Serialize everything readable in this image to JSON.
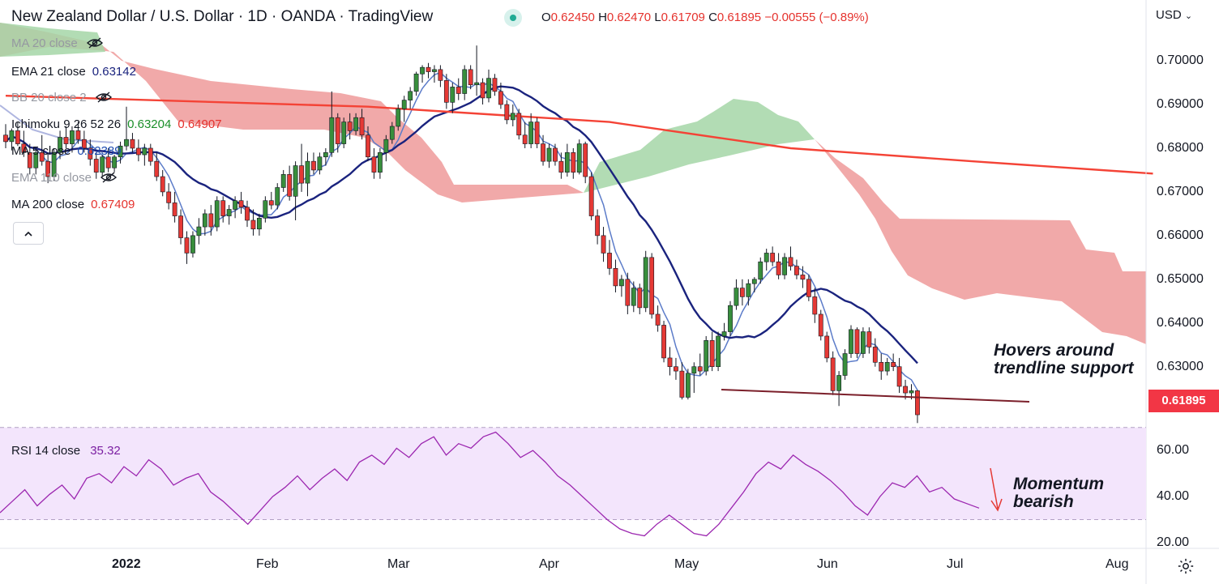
{
  "header": {
    "title": "New Zealand Dollar / U.S. Dollar · 1D · OANDA · TradingView",
    "ohlc": [
      {
        "key": "O",
        "value": "0.62450"
      },
      {
        "key": "H",
        "value": "0.62470"
      },
      {
        "key": "L",
        "value": "0.61709"
      },
      {
        "key": "C",
        "value": "0.61895"
      },
      {
        "key": "",
        "value": "−0.00555 (−0.89%)"
      }
    ]
  },
  "currency": "USD",
  "current_price": "0.61895",
  "legend": [
    {
      "label": "MA 20 close",
      "value": "",
      "hidden": true,
      "color": "#9598a1",
      "value_color": ""
    },
    {
      "label": "EMA 21 close",
      "value": "0.63142",
      "hidden": false,
      "color": "#131722",
      "value_color": "#1a237e"
    },
    {
      "label": "BB 20 close 2",
      "value": "",
      "hidden": true,
      "color": "#9598a1",
      "value_color": ""
    },
    {
      "label": "Ichimoku 9 26 52 26",
      "value": "0.63204",
      "value2": "0.64907",
      "hidden": false,
      "color": "#131722",
      "value_color": "#1b8f2a",
      "value2_color": "#e5322d"
    },
    {
      "label": "MA 5 close",
      "value": "0.62389",
      "hidden": false,
      "color": "#131722",
      "value_color": "#1e4bb0"
    },
    {
      "label": "EMA 110 close",
      "value": "",
      "hidden": true,
      "color": "#9598a1",
      "value_color": ""
    },
    {
      "label": "MA 200 close",
      "value": "0.67409",
      "hidden": false,
      "color": "#131722",
      "value_color": "#e5322d"
    }
  ],
  "rsi_legend": {
    "label": "RSI 14 close",
    "value": "35.32"
  },
  "annotations": {
    "trendline": [
      "Hovers around",
      "trendline support"
    ],
    "momentum": [
      "Momentum",
      "bearish"
    ]
  },
  "chart_data": {
    "type": "candlestick",
    "symbol": "NZDUSD",
    "timeframe": "1D",
    "price_axis": {
      "ticks": [
        "0.70000",
        "0.69000",
        "0.68000",
        "0.67000",
        "0.66000",
        "0.65000",
        "0.64000",
        "0.63000"
      ],
      "range": [
        0.6166,
        0.7065
      ]
    },
    "x_axis": {
      "ticks": [
        {
          "label": "2022",
          "bold": true
        },
        {
          "label": "Feb",
          "bold": false
        },
        {
          "label": "Mar",
          "bold": false
        },
        {
          "label": "Apr",
          "bold": false
        },
        {
          "label": "May",
          "bold": false
        },
        {
          "label": "Jun",
          "bold": false
        },
        {
          "label": "Jul",
          "bold": false
        },
        {
          "label": "Aug",
          "bold": false
        }
      ]
    },
    "colors": {
      "up": "#388e3c",
      "down": "#e53935",
      "ema21": "#1a237e",
      "ma5": "#5c7cc9",
      "ma200": "#f44336",
      "ema110": "#7986cb",
      "cloud_bull": "#a5d6a7",
      "cloud_bear": "#ef9a9a",
      "rsi": "#9c27b0",
      "rsi_band": "#f3e5fc"
    },
    "candles": [
      [
        0.683,
        0.6855,
        0.68,
        0.6815
      ],
      [
        0.6815,
        0.6845,
        0.6795,
        0.684
      ],
      [
        0.684,
        0.686,
        0.6805,
        0.681
      ],
      [
        0.681,
        0.684,
        0.678,
        0.679
      ],
      [
        0.679,
        0.681,
        0.674,
        0.6755
      ],
      [
        0.6755,
        0.68,
        0.674,
        0.679
      ],
      [
        0.679,
        0.683,
        0.676,
        0.677
      ],
      [
        0.677,
        0.679,
        0.672,
        0.6735
      ],
      [
        0.6735,
        0.68,
        0.6725,
        0.679
      ],
      [
        0.679,
        0.684,
        0.6775,
        0.6825
      ],
      [
        0.6825,
        0.685,
        0.68,
        0.681
      ],
      [
        0.681,
        0.685,
        0.679,
        0.684
      ],
      [
        0.684,
        0.686,
        0.681,
        0.682
      ],
      [
        0.682,
        0.684,
        0.679,
        0.68
      ],
      [
        0.68,
        0.682,
        0.676,
        0.6775
      ],
      [
        0.6775,
        0.679,
        0.673,
        0.6745
      ],
      [
        0.6745,
        0.6785,
        0.6735,
        0.678
      ],
      [
        0.678,
        0.68,
        0.6745,
        0.6755
      ],
      [
        0.6755,
        0.6785,
        0.6745,
        0.678
      ],
      [
        0.678,
        0.6815,
        0.6765,
        0.6805
      ],
      [
        0.6805,
        0.6895,
        0.6795,
        0.682
      ],
      [
        0.682,
        0.6835,
        0.679,
        0.68
      ],
      [
        0.68,
        0.682,
        0.677,
        0.6785
      ],
      [
        0.6785,
        0.681,
        0.676,
        0.68
      ],
      [
        0.68,
        0.681,
        0.676,
        0.677
      ],
      [
        0.677,
        0.679,
        0.6725,
        0.6735
      ],
      [
        0.6735,
        0.675,
        0.669,
        0.67
      ],
      [
        0.67,
        0.672,
        0.666,
        0.6675
      ],
      [
        0.6675,
        0.67,
        0.663,
        0.6645
      ],
      [
        0.6645,
        0.666,
        0.658,
        0.6595
      ],
      [
        0.6595,
        0.661,
        0.6535,
        0.656
      ],
      [
        0.656,
        0.661,
        0.655,
        0.66
      ],
      [
        0.66,
        0.664,
        0.658,
        0.662
      ],
      [
        0.662,
        0.666,
        0.66,
        0.665
      ],
      [
        0.665,
        0.667,
        0.66,
        0.662
      ],
      [
        0.662,
        0.669,
        0.661,
        0.668
      ],
      [
        0.668,
        0.669,
        0.663,
        0.6645
      ],
      [
        0.6645,
        0.667,
        0.6625,
        0.666
      ],
      [
        0.666,
        0.669,
        0.664,
        0.668
      ],
      [
        0.668,
        0.67,
        0.665,
        0.6665
      ],
      [
        0.6665,
        0.668,
        0.662,
        0.6635
      ],
      [
        0.6635,
        0.666,
        0.66,
        0.6615
      ],
      [
        0.6615,
        0.665,
        0.66,
        0.664
      ],
      [
        0.664,
        0.669,
        0.663,
        0.668
      ],
      [
        0.668,
        0.67,
        0.666,
        0.667
      ],
      [
        0.667,
        0.672,
        0.666,
        0.671
      ],
      [
        0.671,
        0.675,
        0.67,
        0.674
      ],
      [
        0.674,
        0.676,
        0.668,
        0.669
      ],
      [
        0.669,
        0.677,
        0.6635,
        0.676
      ],
      [
        0.676,
        0.681,
        0.67,
        0.672
      ],
      [
        0.672,
        0.679,
        0.669,
        0.677
      ],
      [
        0.677,
        0.679,
        0.674,
        0.675
      ],
      [
        0.675,
        0.679,
        0.674,
        0.678
      ],
      [
        0.678,
        0.68,
        0.676,
        0.679
      ],
      [
        0.679,
        0.693,
        0.678,
        0.687
      ],
      [
        0.687,
        0.688,
        0.679,
        0.681
      ],
      [
        0.681,
        0.687,
        0.68,
        0.686
      ],
      [
        0.686,
        0.688,
        0.682,
        0.684
      ],
      [
        0.684,
        0.688,
        0.683,
        0.687
      ],
      [
        0.687,
        0.689,
        0.682,
        0.683
      ],
      [
        0.683,
        0.685,
        0.677,
        0.678
      ],
      [
        0.678,
        0.68,
        0.673,
        0.6745
      ],
      [
        0.6745,
        0.68,
        0.673,
        0.679
      ],
      [
        0.679,
        0.683,
        0.677,
        0.682
      ],
      [
        0.682,
        0.686,
        0.681,
        0.685
      ],
      [
        0.685,
        0.69,
        0.684,
        0.689
      ],
      [
        0.689,
        0.692,
        0.686,
        0.691
      ],
      [
        0.691,
        0.694,
        0.689,
        0.693
      ],
      [
        0.693,
        0.6975,
        0.692,
        0.697
      ],
      [
        0.697,
        0.699,
        0.695,
        0.6985
      ],
      [
        0.6985,
        0.6995,
        0.696,
        0.6975
      ],
      [
        0.6975,
        0.699,
        0.695,
        0.698
      ],
      [
        0.698,
        0.699,
        0.694,
        0.6955
      ],
      [
        0.6955,
        0.697,
        0.689,
        0.6905
      ],
      [
        0.6905,
        0.695,
        0.688,
        0.694
      ],
      [
        0.694,
        0.696,
        0.691,
        0.6925
      ],
      [
        0.6925,
        0.699,
        0.691,
        0.698
      ],
      [
        0.698,
        0.699,
        0.6935,
        0.6945
      ],
      [
        0.6945,
        0.7035,
        0.692,
        0.695
      ],
      [
        0.695,
        0.696,
        0.69,
        0.6915
      ],
      [
        0.6915,
        0.698,
        0.6905,
        0.696
      ],
      [
        0.696,
        0.697,
        0.692,
        0.693
      ],
      [
        0.693,
        0.695,
        0.689,
        0.69
      ],
      [
        0.69,
        0.691,
        0.6855,
        0.6865
      ],
      [
        0.6865,
        0.69,
        0.685,
        0.688
      ],
      [
        0.688,
        0.689,
        0.682,
        0.683
      ],
      [
        0.683,
        0.686,
        0.68,
        0.681
      ],
      [
        0.681,
        0.688,
        0.68,
        0.686
      ],
      [
        0.686,
        0.687,
        0.68,
        0.681
      ],
      [
        0.681,
        0.683,
        0.676,
        0.677
      ],
      [
        0.677,
        0.681,
        0.6755,
        0.68
      ],
      [
        0.68,
        0.681,
        0.676,
        0.677
      ],
      [
        0.677,
        0.679,
        0.673,
        0.6745
      ],
      [
        0.6745,
        0.681,
        0.6735,
        0.679
      ],
      [
        0.679,
        0.68,
        0.673,
        0.6745
      ],
      [
        0.6745,
        0.682,
        0.674,
        0.681
      ],
      [
        0.681,
        0.6815,
        0.672,
        0.6735
      ],
      [
        0.6735,
        0.6745,
        0.6635,
        0.6645
      ],
      [
        0.6645,
        0.666,
        0.658,
        0.66
      ],
      [
        0.66,
        0.662,
        0.654,
        0.656
      ],
      [
        0.656,
        0.659,
        0.651,
        0.6525
      ],
      [
        0.6525,
        0.6545,
        0.647,
        0.6485
      ],
      [
        0.6485,
        0.651,
        0.646,
        0.65
      ],
      [
        0.65,
        0.6515,
        0.642,
        0.644
      ],
      [
        0.644,
        0.6495,
        0.6425,
        0.648
      ],
      [
        0.648,
        0.649,
        0.642,
        0.6435
      ],
      [
        0.6435,
        0.6565,
        0.6425,
        0.655
      ],
      [
        0.655,
        0.656,
        0.641,
        0.642
      ],
      [
        0.642,
        0.644,
        0.638,
        0.6395
      ],
      [
        0.6395,
        0.6405,
        0.631,
        0.632
      ],
      [
        0.632,
        0.6345,
        0.628,
        0.63
      ],
      [
        0.63,
        0.632,
        0.627,
        0.629
      ],
      [
        0.629,
        0.631,
        0.6225,
        0.623
      ],
      [
        0.623,
        0.6295,
        0.6225,
        0.6285
      ],
      [
        0.6285,
        0.631,
        0.624,
        0.63
      ],
      [
        0.63,
        0.633,
        0.628,
        0.629
      ],
      [
        0.629,
        0.637,
        0.628,
        0.636
      ],
      [
        0.636,
        0.638,
        0.629,
        0.63
      ],
      [
        0.63,
        0.638,
        0.629,
        0.637
      ],
      [
        0.637,
        0.64,
        0.636,
        0.638
      ],
      [
        0.638,
        0.645,
        0.637,
        0.644
      ],
      [
        0.644,
        0.65,
        0.643,
        0.648
      ],
      [
        0.648,
        0.65,
        0.644,
        0.646
      ],
      [
        0.646,
        0.65,
        0.644,
        0.649
      ],
      [
        0.649,
        0.6505,
        0.647,
        0.65
      ],
      [
        0.65,
        0.655,
        0.649,
        0.654
      ],
      [
        0.654,
        0.657,
        0.652,
        0.656
      ],
      [
        0.656,
        0.6575,
        0.653,
        0.654
      ],
      [
        0.654,
        0.656,
        0.65,
        0.651
      ],
      [
        0.651,
        0.656,
        0.65,
        0.655
      ],
      [
        0.655,
        0.6575,
        0.652,
        0.653
      ],
      [
        0.653,
        0.6545,
        0.65,
        0.651
      ],
      [
        0.651,
        0.653,
        0.648,
        0.65
      ],
      [
        0.65,
        0.651,
        0.645,
        0.646
      ],
      [
        0.646,
        0.648,
        0.64,
        0.642
      ],
      [
        0.642,
        0.643,
        0.636,
        0.637
      ],
      [
        0.637,
        0.638,
        0.631,
        0.632
      ],
      [
        0.632,
        0.6335,
        0.6235,
        0.6245
      ],
      [
        0.6245,
        0.629,
        0.621,
        0.628
      ],
      [
        0.628,
        0.634,
        0.627,
        0.633
      ],
      [
        0.633,
        0.6395,
        0.632,
        0.6385
      ],
      [
        0.6385,
        0.639,
        0.632,
        0.633
      ],
      [
        0.633,
        0.639,
        0.632,
        0.638
      ],
      [
        0.638,
        0.639,
        0.633,
        0.6345
      ],
      [
        0.6345,
        0.6365,
        0.63,
        0.631
      ],
      [
        0.631,
        0.633,
        0.627,
        0.629
      ],
      [
        0.629,
        0.632,
        0.628,
        0.631
      ],
      [
        0.631,
        0.633,
        0.629,
        0.63
      ],
      [
        0.63,
        0.632,
        0.624,
        0.6255
      ],
      [
        0.6255,
        0.627,
        0.6225,
        0.624
      ],
      [
        0.624,
        0.626,
        0.6225,
        0.6245
      ],
      [
        0.6245,
        0.6247,
        0.6171,
        0.619
      ]
    ],
    "ma200": [
      [
        0,
        0.692
      ],
      [
        60,
        0.6895
      ],
      [
        100,
        0.686
      ],
      [
        130,
        0.68
      ],
      [
        160,
        0.677
      ],
      [
        190,
        0.6742
      ]
    ],
    "rsi": {
      "axis_ticks": [
        "60.00",
        "40.00",
        "20.00"
      ],
      "range": [
        20,
        70
      ],
      "upper_band": 70,
      "lower_band": 30,
      "values": [
        33,
        38,
        43,
        36,
        41,
        45,
        39,
        48,
        50,
        46,
        53,
        49,
        56,
        52,
        45,
        48,
        50,
        42,
        38,
        33,
        28,
        34,
        40,
        44,
        49,
        43,
        48,
        52,
        47,
        55,
        58,
        54,
        61,
        57,
        63,
        66,
        58,
        63,
        61,
        66,
        68,
        63,
        57,
        60,
        55,
        49,
        45,
        40,
        35,
        30,
        26,
        24,
        23,
        28,
        32,
        28,
        24,
        23,
        28,
        35,
        42,
        50,
        55,
        52,
        58,
        54,
        51,
        47,
        42,
        36,
        32,
        40,
        46,
        44,
        49,
        42,
        44,
        39,
        37,
        35
      ]
    }
  }
}
